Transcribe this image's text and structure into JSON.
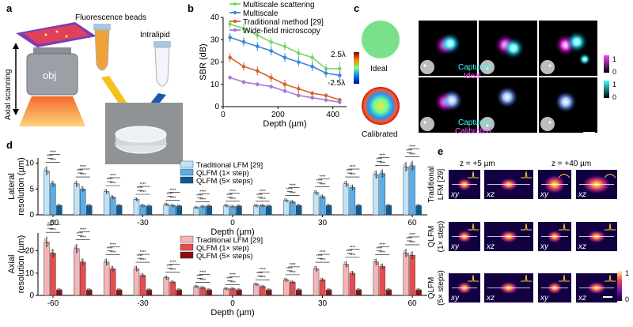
{
  "panels": {
    "a": {
      "label": "a",
      "beads": "Fluorescence beads",
      "intralipid": "Intralipid",
      "obj": "obj",
      "axial": "Axial scanning"
    },
    "b": {
      "label": "b"
    },
    "c": {
      "label": "c",
      "ideal": "Ideal",
      "calibrated": "Calibrated",
      "cb_top": "2.5λ",
      "cb_bottom": "-2.5λ",
      "row1_captured": "Captured",
      "row1_ideal": "Ideal",
      "row2_captured": "Captured",
      "row2_calibrated": "Calibrated",
      "cm1_top": "1",
      "cm1_bottom": "0",
      "cm2_top": "1",
      "cm2_bottom": "0"
    },
    "d": {
      "label": "d"
    },
    "e": {
      "label": "e",
      "z1": "z = +5 µm",
      "z2": "z = +40 µm",
      "rows": [
        "Traditional LFM [29]",
        "QLFM (1× step)",
        "QLFM (5× steps)"
      ],
      "xy": "xy",
      "xz": "xz",
      "cb_top": "1",
      "cb_bottom": "0"
    }
  },
  "chart_data": [
    {
      "type": "line",
      "panel": "b",
      "xlabel": "Depth (µm)",
      "ylabel": "SBR (dB)",
      "xlim": [
        0,
        450
      ],
      "ylim": [
        0,
        40
      ],
      "xticks": [
        0,
        200,
        400
      ],
      "yticks": [
        0,
        10,
        20,
        30,
        40
      ],
      "x": [
        25,
        75,
        125,
        175,
        225,
        275,
        325,
        375,
        425
      ],
      "series": [
        {
          "name": "Multiscale scattering",
          "color": "#7dd36a",
          "values": [
            37,
            35,
            32,
            29,
            27,
            24,
            22,
            17,
            17
          ],
          "err": [
            2,
            2,
            2,
            2,
            2,
            2,
            2,
            2,
            3
          ]
        },
        {
          "name": "Multiscale",
          "color": "#3a86d8",
          "values": [
            31,
            29,
            27,
            25,
            22,
            20,
            18,
            15,
            14
          ],
          "err": [
            2,
            2,
            2,
            2,
            2,
            2,
            2,
            2,
            2
          ]
        },
        {
          "name": "Traditional method [29]",
          "color": "#d9622b",
          "values": [
            22,
            18,
            16,
            13,
            10,
            8,
            6,
            5,
            3
          ],
          "err": [
            2,
            2,
            2,
            2,
            2,
            2,
            1,
            1,
            1
          ]
        },
        {
          "name": "Wide-field microscopy",
          "color": "#a77bd0",
          "values": [
            13,
            11,
            10,
            9,
            7,
            5,
            4,
            3,
            2
          ],
          "err": [
            1,
            1,
            1,
            1,
            1,
            1,
            1,
            1,
            1
          ]
        }
      ]
    },
    {
      "type": "bar",
      "panel": "d-top",
      "xlabel": "Depth (µm)",
      "ylabel": "Lateral resolution (µm)",
      "ylim": [
        0,
        11
      ],
      "yticks": [
        0,
        5,
        10
      ],
      "categories": [
        "-60",
        "-50",
        "-40",
        "-30",
        "-20",
        "-10",
        "0",
        "10",
        "20",
        "30",
        "40",
        "50",
        "60"
      ],
      "xticks": [
        "-60",
        "-30",
        "0",
        "30",
        "60"
      ],
      "series": [
        {
          "name": "Traditional LFM [29]",
          "color": "#bfe3f7",
          "values": [
            8.5,
            6.0,
            4.5,
            3.0,
            2.0,
            1.4,
            1.8,
            1.8,
            2.8,
            4.3,
            6.0,
            7.8,
            9.3
          ]
        },
        {
          "name": "QLFM (1× step)",
          "color": "#5aaee8",
          "values": [
            6.0,
            5.0,
            3.4,
            1.8,
            1.8,
            1.6,
            1.6,
            1.8,
            2.5,
            3.5,
            5.3,
            8.0,
            9.5
          ]
        },
        {
          "name": "QLFM (5× steps)",
          "color": "#0d5a93",
          "values": [
            1.8,
            1.8,
            1.8,
            1.7,
            1.7,
            1.7,
            1.7,
            1.7,
            1.8,
            1.8,
            1.8,
            1.8,
            1.8
          ]
        }
      ]
    },
    {
      "type": "bar",
      "panel": "d-bottom",
      "xlabel": "Depth (µm)",
      "ylabel": "Axial resolution (µm)",
      "ylim": [
        0,
        28
      ],
      "yticks": [
        0,
        10,
        20
      ],
      "categories": [
        "-60",
        "-50",
        "-40",
        "-30",
        "-20",
        "-10",
        "0",
        "10",
        "20",
        "30",
        "40",
        "50",
        "60"
      ],
      "xticks": [
        "-60",
        "-30",
        "0",
        "30",
        "60"
      ],
      "series": [
        {
          "name": "Traditional LFM [29]",
          "color": "#f7b4b4",
          "values": [
            24,
            21,
            15,
            12,
            8,
            4,
            3,
            5,
            7,
            12,
            14,
            15,
            19
          ]
        },
        {
          "name": "QLFM (1× step)",
          "color": "#e84b4b",
          "values": [
            19,
            15,
            12,
            9,
            6,
            3.5,
            3,
            4,
            6,
            7,
            10,
            13,
            18
          ]
        },
        {
          "name": "QLFM (5× steps)",
          "color": "#8a0f0f",
          "values": [
            2.5,
            2.5,
            2.5,
            2.5,
            2.5,
            2.5,
            2.5,
            2.5,
            2.5,
            2.5,
            2.5,
            2.5,
            2.5
          ]
        }
      ]
    }
  ]
}
